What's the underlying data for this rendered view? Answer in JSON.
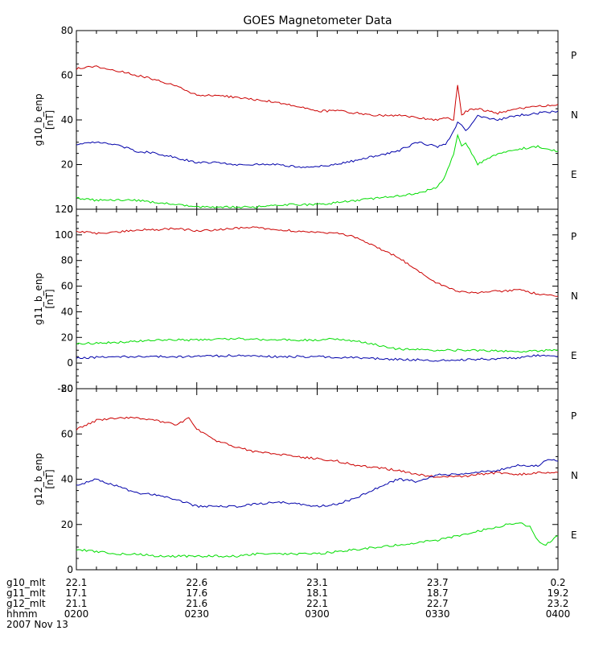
{
  "chart_data": {
    "title": "GOES Magnetometer Data",
    "type": "line",
    "date_label": "2007 Nov 13",
    "x_ticks": [
      "0200",
      "0230",
      "0300",
      "0330",
      "0400"
    ],
    "x_range_minutes": [
      0,
      120
    ],
    "mlt_rows": [
      {
        "label": "g10_mlt",
        "values": [
          "22.1",
          "22.6",
          "23.1",
          "23.7",
          "0.2"
        ]
      },
      {
        "label": "g11_mlt",
        "values": [
          "17.1",
          "17.6",
          "18.1",
          "18.7",
          "19.2"
        ]
      },
      {
        "label": "g12_mlt",
        "values": [
          "21.1",
          "21.6",
          "22.1",
          "22.7",
          "23.2"
        ]
      },
      {
        "label": "hhmm",
        "values": [
          "0200",
          "0230",
          "0300",
          "0330",
          "0400"
        ]
      }
    ],
    "colors": {
      "P": "#cc0000",
      "N": "#00dd00",
      "E": "#0000aa"
    },
    "panels": [
      {
        "ylabel": "g10_b_enp",
        "yunit": "[nT]",
        "ylim": [
          0,
          80
        ],
        "yticks": [
          0,
          20,
          40,
          60,
          80
        ],
        "legend": [
          "P",
          "N",
          "E"
        ],
        "series": [
          {
            "name": "P",
            "x": [
              0,
              5,
              10,
              15,
              20,
              25,
              30,
              35,
              40,
              45,
              50,
              55,
              60,
              65,
              70,
              75,
              80,
              85,
              90,
              92,
              94,
              95,
              96,
              97,
              100,
              105,
              110,
              115,
              120
            ],
            "y": [
              63,
              64,
              62,
              60,
              58,
              55,
              51,
              51,
              50,
              49,
              48,
              46,
              44,
              44,
              43,
              42,
              42,
              41,
              40,
              41,
              40,
              56,
              42,
              44,
              45,
              43,
              45,
              46,
              47
            ]
          },
          {
            "name": "N",
            "x": [
              0,
              5,
              10,
              15,
              20,
              25,
              30,
              35,
              40,
              45,
              50,
              55,
              60,
              65,
              70,
              75,
              80,
              85,
              90,
              92,
              94,
              95,
              96,
              97,
              100,
              105,
              110,
              115,
              120
            ],
            "y": [
              5,
              4,
              4,
              4,
              3,
              2,
              1,
              1,
              1,
              1,
              2,
              2,
              2,
              3,
              4,
              5,
              6,
              7,
              10,
              15,
              25,
              33,
              28,
              30,
              20,
              25,
              27,
              28,
              26
            ]
          },
          {
            "name": "E",
            "x": [
              0,
              5,
              10,
              15,
              20,
              25,
              30,
              35,
              40,
              45,
              50,
              55,
              60,
              65,
              70,
              75,
              80,
              85,
              90,
              92,
              94,
              95,
              96,
              97,
              100,
              105,
              110,
              115,
              120
            ],
            "y": [
              29,
              30,
              29,
              26,
              25,
              23,
              21,
              21,
              20,
              20,
              20,
              19,
              19,
              20,
              22,
              24,
              26,
              30,
              28,
              29,
              35,
              39,
              38,
              35,
              42,
              40,
              42,
              43,
              44
            ]
          }
        ]
      },
      {
        "ylabel": "g11_b_enp",
        "yunit": "[nT]",
        "ylim": [
          -20,
          120
        ],
        "yticks": [
          -20,
          0,
          20,
          40,
          60,
          80,
          100,
          120
        ],
        "legend": [
          "P",
          "N",
          "E"
        ],
        "series": [
          {
            "name": "P",
            "x": [
              0,
              5,
              10,
              15,
              20,
              25,
              30,
              35,
              40,
              45,
              50,
              55,
              60,
              65,
              70,
              75,
              80,
              85,
              90,
              95,
              100,
              105,
              110,
              115,
              120
            ],
            "y": [
              103,
              101,
              102,
              104,
              104,
              105,
              103,
              104,
              105,
              106,
              104,
              103,
              102,
              101,
              98,
              90,
              83,
              72,
              62,
              56,
              55,
              56,
              57,
              54,
              52
            ]
          },
          {
            "name": "N",
            "x": [
              0,
              10,
              20,
              30,
              40,
              50,
              60,
              65,
              70,
              75,
              80,
              90,
              100,
              110,
              120
            ],
            "y": [
              15,
              16,
              18,
              18,
              19,
              18,
              18,
              19,
              17,
              14,
              11,
              10,
              10,
              9,
              10
            ]
          },
          {
            "name": "E",
            "x": [
              0,
              10,
              20,
              30,
              40,
              50,
              60,
              70,
              80,
              90,
              100,
              110,
              115,
              120
            ],
            "y": [
              4,
              5,
              5,
              5,
              6,
              5,
              5,
              4,
              3,
              2,
              3,
              4,
              6,
              5
            ]
          }
        ]
      },
      {
        "ylabel": "g12_b_enp",
        "yunit": "[nT]",
        "ylim": [
          0,
          80
        ],
        "yticks": [
          0,
          20,
          40,
          60,
          80
        ],
        "legend": [
          "P",
          "N",
          "E"
        ],
        "series": [
          {
            "name": "P",
            "x": [
              0,
              5,
              10,
              15,
              20,
              25,
              28,
              30,
              35,
              40,
              45,
              50,
              55,
              60,
              65,
              70,
              75,
              80,
              85,
              90,
              95,
              100,
              105,
              110,
              115,
              120
            ],
            "y": [
              62,
              66,
              67,
              67,
              66,
              64,
              67,
              62,
              57,
              54,
              52,
              51,
              50,
              49,
              48,
              46,
              45,
              44,
              42,
              41,
              41,
              42,
              43,
              42,
              43,
              43
            ]
          },
          {
            "name": "N",
            "x": [
              0,
              5,
              10,
              15,
              20,
              25,
              30,
              35,
              40,
              45,
              50,
              55,
              60,
              65,
              70,
              75,
              80,
              85,
              90,
              95,
              100,
              105,
              110,
              113,
              115,
              117,
              120
            ],
            "y": [
              9,
              8,
              7,
              7,
              6,
              6,
              6,
              6,
              6,
              7,
              7,
              7,
              7,
              8,
              9,
              10,
              11,
              12,
              13,
              15,
              17,
              19,
              21,
              19,
              13,
              11,
              15
            ]
          },
          {
            "name": "E",
            "x": [
              0,
              5,
              10,
              15,
              20,
              25,
              30,
              35,
              40,
              45,
              50,
              55,
              60,
              65,
              70,
              75,
              80,
              85,
              90,
              95,
              100,
              105,
              110,
              115,
              118,
              120
            ],
            "y": [
              37,
              40,
              37,
              34,
              33,
              31,
              28,
              28,
              28,
              29,
              30,
              29,
              28,
              29,
              32,
              36,
              40,
              39,
              42,
              42,
              43,
              44,
              46,
              46,
              49,
              48
            ]
          }
        ]
      }
    ]
  }
}
